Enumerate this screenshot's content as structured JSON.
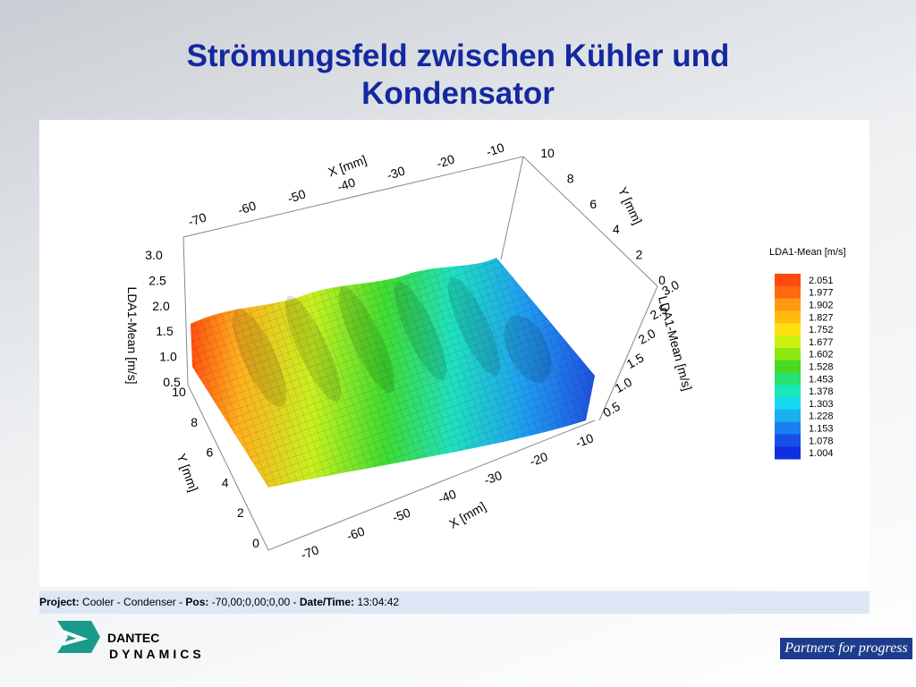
{
  "title": "Strömungsfeld zwischen Kühler und Kondensator",
  "plot": {
    "back_x_label": "X [mm]",
    "back_x_ticks": [
      "-70",
      "-60",
      "-50",
      "-40",
      "-30",
      "-20",
      "-10"
    ],
    "right_y_label": "Y [mm]",
    "right_y_ticks": [
      "10",
      "8",
      "6",
      "4",
      "2",
      "0"
    ],
    "left_z_label": "LDA1-Mean [m/s]",
    "left_z_ticks": [
      "3.0",
      "2.5",
      "2.0",
      "1.5",
      "1.0",
      "0.5"
    ],
    "right_z_label": "LDA1-Mean [m/s]",
    "right_z_ticks": [
      "3.0",
      "2.5",
      "2.0",
      "1.5",
      "1.0",
      "0.5"
    ],
    "front_y_label": "Y [mm]",
    "front_y_ticks": [
      "10",
      "8",
      "6",
      "4",
      "2",
      "0"
    ],
    "front_x_label": "X [mm]",
    "front_x_ticks": [
      "-70",
      "-60",
      "-50",
      "-40",
      "-30",
      "-20",
      "-10"
    ]
  },
  "colorbar": {
    "title": "LDA1-Mean [m/s]",
    "levels": [
      {
        "label": "2.051",
        "color": "#ff4a10"
      },
      {
        "label": "1.977",
        "color": "#ff6a10"
      },
      {
        "label": "1.902",
        "color": "#ff9a10"
      },
      {
        "label": "1.827",
        "color": "#ffbb10"
      },
      {
        "label": "1.752",
        "color": "#ffe010"
      },
      {
        "label": "1.677",
        "color": "#ccf010"
      },
      {
        "label": "1.602",
        "color": "#8ee810"
      },
      {
        "label": "1.528",
        "color": "#4ad820"
      },
      {
        "label": "1.453",
        "color": "#28e070"
      },
      {
        "label": "1.378",
        "color": "#18e8b8"
      },
      {
        "label": "1.303",
        "color": "#18d8f0"
      },
      {
        "label": "1.228",
        "color": "#18b0f0"
      },
      {
        "label": "1.153",
        "color": "#1880f0"
      },
      {
        "label": "1.078",
        "color": "#1850e8"
      },
      {
        "label": "1.004",
        "color": "#1030e0"
      }
    ]
  },
  "status": {
    "project_label": "Project:",
    "project": "Cooler - Condenser",
    "separator": " - ",
    "pos_label": "Pos:",
    "pos": "-70,00;0,00;0,00",
    "datetime_label": "Date/Time:",
    "datetime": "13:04:42"
  },
  "logo": {
    "name": "DANTEC",
    "sub": "DYNAMICS"
  },
  "tagline": "Partners for progress"
}
